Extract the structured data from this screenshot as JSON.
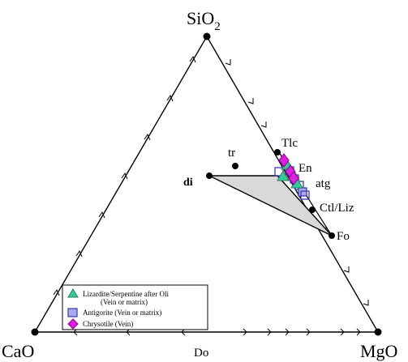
{
  "vertices": {
    "top": {
      "label": "SiO",
      "sub": "2"
    },
    "left": {
      "label": "CaO"
    },
    "right": {
      "label": "MgO"
    }
  },
  "points": {
    "tr": "tr",
    "tlc": "Tlc",
    "en": "En",
    "atg": "atg",
    "di": "di",
    "ctl": "Ctl/Liz",
    "fo": "Fo",
    "do": "Do"
  },
  "legend": {
    "items": [
      {
        "label": "Lizardite/Serpentine after Oli",
        "sublabel": "(Vein or matrix)",
        "marker": "triangle",
        "color": "#33cc99",
        "stroke": "#2e7d5b"
      },
      {
        "label": "Antigorite (Vein or matrix)",
        "marker": "square",
        "color": "#a9a9ee",
        "stroke": "#3a3ab0"
      },
      {
        "label": "Chrysotile (Vein)",
        "marker": "diamond",
        "color": "#e020e0",
        "stroke": "#8a008a"
      }
    ]
  },
  "colors": {
    "field_fill": "#d9d9d9",
    "lizardite": "#33cc99",
    "antigorite": "#a9a9ee",
    "chrysotile": "#e020e0"
  }
}
